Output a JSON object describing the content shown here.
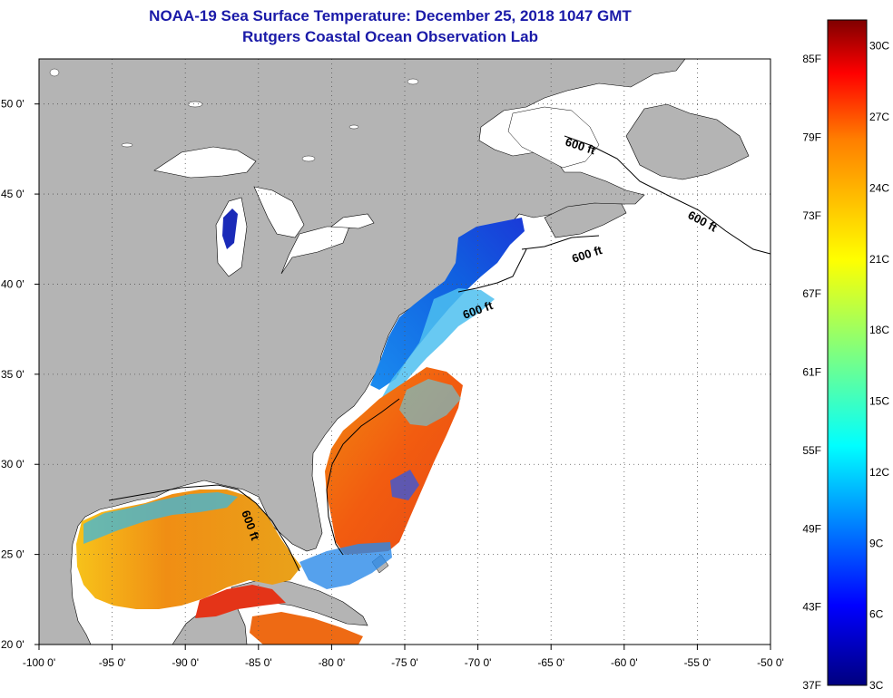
{
  "header": {
    "title": "NOAA-19 Sea Surface Temperature:  December 25, 2018 1047 GMT",
    "subtitle": "Rutgers Coastal Ocean Observation Lab"
  },
  "map": {
    "lon_range": [
      -100,
      -50
    ],
    "lat_range": [
      20,
      52.5
    ],
    "lon_ticks": [
      "-100 0'",
      "-95 0'",
      "-90 0'",
      "-85 0'",
      "-80 0'",
      "-75 0'",
      "-70 0'",
      "-65 0'",
      "-60 0'",
      "-55 0'",
      "-50 0'"
    ],
    "lat_ticks": [
      "20 0'",
      "25 0'",
      "30 0'",
      "35 0'",
      "40 0'",
      "45 0'",
      "50 0'"
    ],
    "land_color": "#b4b4b4",
    "water_color": "#ffffff",
    "grid": "dotted",
    "contour_labels": [
      "600 ft",
      "600 ft",
      "600 ft",
      "600 ft",
      "600 ft"
    ]
  },
  "colorbar": {
    "f_labels": [
      "85F",
      "79F",
      "73F",
      "67F",
      "61F",
      "55F",
      "49F",
      "43F",
      "37F"
    ],
    "c_labels": [
      "30C",
      "27C",
      "24C",
      "21C",
      "18C",
      "15C",
      "12C",
      "9C",
      "6C",
      "3C"
    ],
    "colors": [
      "#7f0000",
      "#ff0000",
      "#ff7f00",
      "#ffff00",
      "#7fff7f",
      "#00ffff",
      "#007fff",
      "#0000ff",
      "#00007f"
    ]
  }
}
